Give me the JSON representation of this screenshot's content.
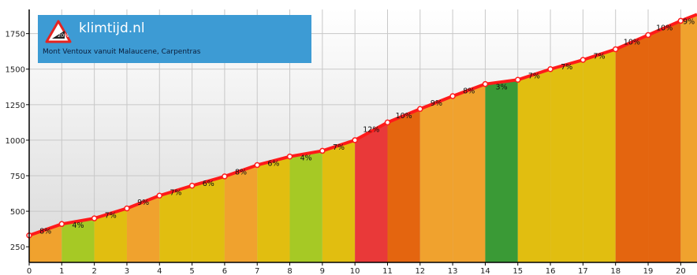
{
  "logo": {
    "site": "klimtijd.nl",
    "subtitle": "Mont Ventoux vanuit Malaucene, Carpentras",
    "badge": "20%",
    "background": "#3d9bd4"
  },
  "chart_data": {
    "type": "area",
    "title": "",
    "xlabel": "",
    "ylabel": "",
    "xlim": [
      0,
      20.5
    ],
    "ylim": [
      140,
      1920
    ],
    "x_ticks": [
      0,
      1,
      2,
      3,
      4,
      5,
      6,
      7,
      8,
      9,
      10,
      11,
      12,
      13,
      14,
      15,
      16,
      17,
      18,
      19,
      20
    ],
    "y_ticks": [
      250,
      500,
      750,
      1000,
      1250,
      1500,
      1750
    ],
    "points": [
      {
        "x": 0,
        "y": 330
      },
      {
        "x": 1,
        "y": 410
      },
      {
        "x": 2,
        "y": 450
      },
      {
        "x": 3,
        "y": 520
      },
      {
        "x": 4,
        "y": 610
      },
      {
        "x": 5,
        "y": 680
      },
      {
        "x": 6,
        "y": 745
      },
      {
        "x": 7,
        "y": 825
      },
      {
        "x": 8,
        "y": 885
      },
      {
        "x": 9,
        "y": 925
      },
      {
        "x": 10,
        "y": 1000
      },
      {
        "x": 11,
        "y": 1125
      },
      {
        "x": 12,
        "y": 1220
      },
      {
        "x": 13,
        "y": 1310
      },
      {
        "x": 14,
        "y": 1395
      },
      {
        "x": 15,
        "y": 1425
      },
      {
        "x": 16,
        "y": 1500
      },
      {
        "x": 17,
        "y": 1565
      },
      {
        "x": 18,
        "y": 1640
      },
      {
        "x": 19,
        "y": 1740
      },
      {
        "x": 20,
        "y": 1840
      },
      {
        "x": 20.5,
        "y": 1885
      }
    ],
    "segments": [
      {
        "grade": "8%",
        "color": "#f0a22e"
      },
      {
        "grade": "4%",
        "color": "#a6c925"
      },
      {
        "grade": "7%",
        "color": "#e1be10"
      },
      {
        "grade": "9%",
        "color": "#f0a22e"
      },
      {
        "grade": "7%",
        "color": "#e1be10"
      },
      {
        "grade": "6%",
        "color": "#e1be10"
      },
      {
        "grade": "8%",
        "color": "#f0a22e"
      },
      {
        "grade": "6%",
        "color": "#e1be10"
      },
      {
        "grade": "4%",
        "color": "#a6c925"
      },
      {
        "grade": "7%",
        "color": "#e1be10"
      },
      {
        "grade": "12%",
        "color": "#e93939"
      },
      {
        "grade": "10%",
        "color": "#e4650f"
      },
      {
        "grade": "9%",
        "color": "#f0a22e"
      },
      {
        "grade": "8%",
        "color": "#f0a22e"
      },
      {
        "grade": "3%",
        "color": "#3a9a36"
      },
      {
        "grade": "7%",
        "color": "#e1be10"
      },
      {
        "grade": "7%",
        "color": "#e1be10"
      },
      {
        "grade": "7%",
        "color": "#e1be10"
      },
      {
        "grade": "10%",
        "color": "#e4650f"
      },
      {
        "grade": "10%",
        "color": "#e4650f"
      },
      {
        "grade": "9%",
        "color": "#f0a22e"
      }
    ],
    "line_color": "#ff1a1a",
    "grid": true
  }
}
